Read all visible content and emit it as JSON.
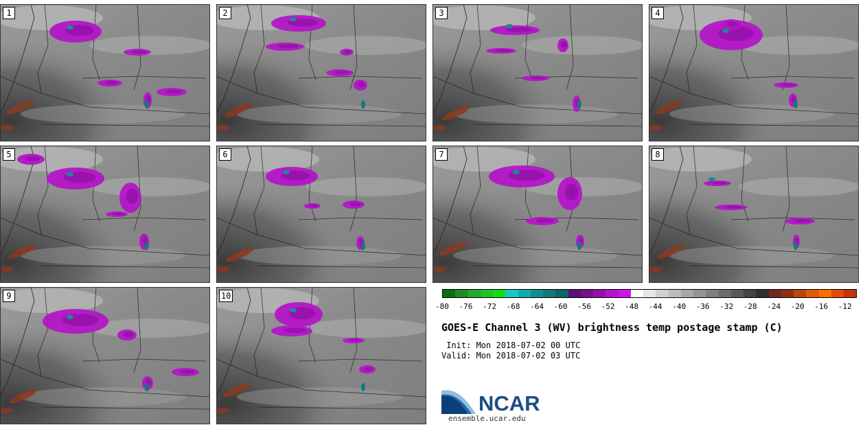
{
  "panels": [
    {
      "id": "1"
    },
    {
      "id": "2"
    },
    {
      "id": "3"
    },
    {
      "id": "4"
    },
    {
      "id": "5"
    },
    {
      "id": "6"
    },
    {
      "id": "7"
    },
    {
      "id": "8"
    },
    {
      "id": "9"
    },
    {
      "id": "10"
    }
  ],
  "colorbar": {
    "colors": [
      "#0a6e18",
      "#1f8a26",
      "#24a82d",
      "#21c32d",
      "#14dc14",
      "#19c6c6",
      "#14aaaa",
      "#128f90",
      "#117a7a",
      "#0f6464",
      "#5c0f6e",
      "#7a0f8a",
      "#9610aa",
      "#b414c8",
      "#d214e6",
      "#ffffff",
      "#e6e6e6",
      "#d0d0d0",
      "#bcbcbc",
      "#a8a8a8",
      "#949494",
      "#808080",
      "#6c6c6c",
      "#585858",
      "#444444",
      "#303030",
      "#6e2a1e",
      "#8c3214",
      "#b4460f",
      "#dc5a0a",
      "#ff6e00",
      "#e04a0a",
      "#c8320a"
    ],
    "tick_labels": [
      "-80",
      "-76",
      "-72",
      "-68",
      "-64",
      "-60",
      "-56",
      "-52",
      "-48",
      "-44",
      "-40",
      "-36",
      "-32",
      "-28",
      "-24",
      "-20",
      "-16",
      "-12"
    ]
  },
  "title": "GOES-E Channel 3 (WV) brightness temp postage stamp (C)",
  "init_line": " Init: Mon 2018-07-02 00 UTC",
  "valid_line": "Valid: Mon 2018-07-02 03 UTC",
  "logo_text": "NCAR",
  "site": "ensemble.ucar.edu"
}
